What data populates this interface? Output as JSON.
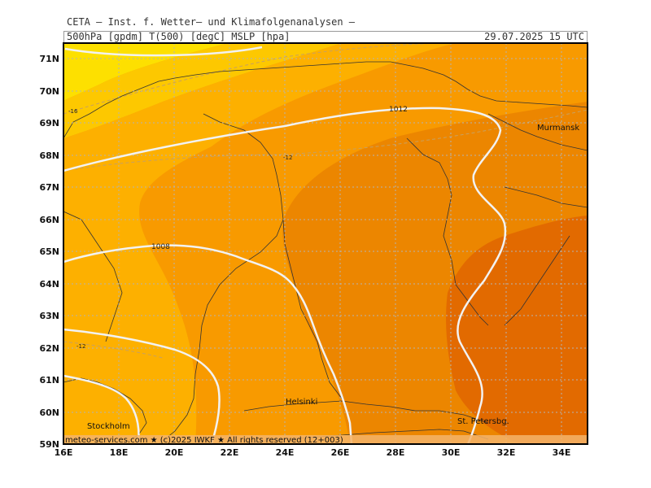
{
  "header": {
    "title": "CETA — Inst. f. Wetter— und Klimafolgenanalysen —",
    "parameters": "500hPa [gpdm] T(500) [degC] MSLP [hpa]",
    "valid_time": "29.07.2025 15 UTC"
  },
  "map": {
    "latitude_labels": [
      "71N",
      "70N",
      "69N",
      "68N",
      "67N",
      "66N",
      "65N",
      "64N",
      "63N",
      "62N",
      "61N",
      "60N",
      "59N"
    ],
    "longitude_labels": [
      "16E",
      "18E",
      "20E",
      "22E",
      "24E",
      "26E",
      "28E",
      "30E",
      "32E",
      "34E"
    ],
    "isobar_labels": [
      "1012",
      "1008"
    ],
    "isotherm_labels": [
      "-16",
      "-12",
      "-12"
    ],
    "cities": [
      "Murmansk",
      "Helsinki",
      "St. Petersbg.",
      "Stockholm"
    ],
    "footer": "meteo-services.com ★ (c)2025 IWKF ★ All rights reserved (12+003)",
    "colors": {
      "band_coldest": "#fde000",
      "band_2": "#fdc800",
      "band_3": "#fdb000",
      "band_4": "#f89a00",
      "band_5": "#ec8600",
      "band_warmest": "#e26a00",
      "isobar": "#f2f2f2",
      "isotherm": "#c8a060",
      "coast": "#333333",
      "grid": "#b4b4b4"
    }
  }
}
